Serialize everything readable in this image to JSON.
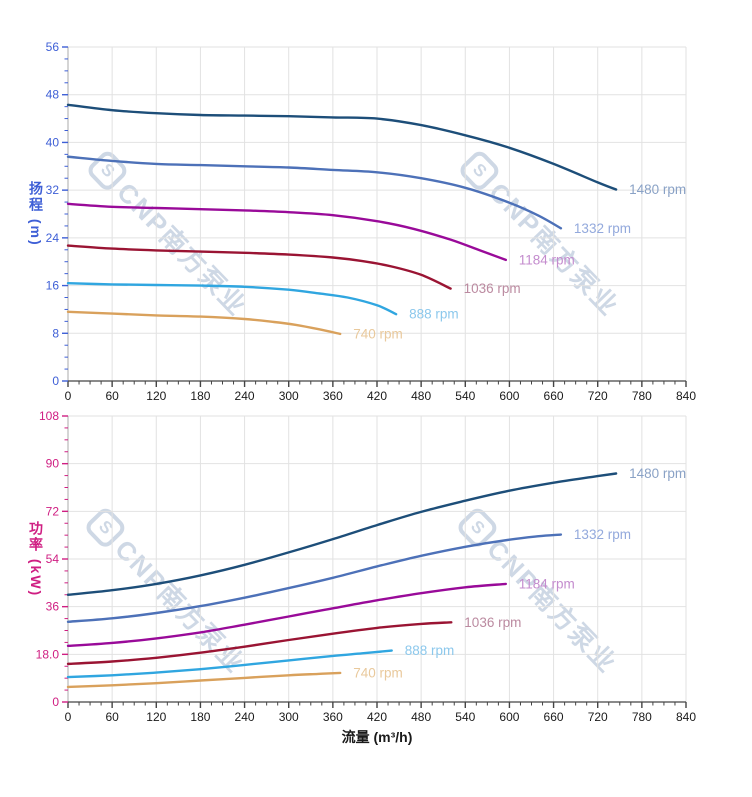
{
  "page": {
    "background": "#ffffff"
  },
  "watermark": {
    "logo": "S",
    "text": "CNP南方泵业",
    "color": "#c3cfdf"
  },
  "chart_data": [
    {
      "type": "line",
      "title": "",
      "xlabel": "",
      "ylabel": "扬程 (m)",
      "xlim": [
        0,
        840
      ],
      "ylim": [
        0,
        56
      ],
      "grid": true,
      "axis_color": "#3e5fd6",
      "x_axis_color": "#333333",
      "x_tick_labels": [
        "0",
        "60",
        "120",
        "180",
        "240",
        "300",
        "360",
        "420",
        "480",
        "540",
        "600",
        "660",
        "720",
        "780",
        "840"
      ],
      "y_tick_labels": [
        "0",
        "8",
        "16",
        "24",
        "32",
        "40",
        "48",
        "56"
      ],
      "x_minor_step": 15,
      "y_minor_step": 2,
      "legend_position": "curve-end-labels",
      "series": [
        {
          "name": "1480 rpm",
          "color": "#1d4e79",
          "label_color": "#8aa2c6",
          "points": [
            [
              0,
              46.3
            ],
            [
              60,
              45.4
            ],
            [
              120,
              44.9
            ],
            [
              180,
              44.6
            ],
            [
              240,
              44.5
            ],
            [
              300,
              44.4
            ],
            [
              360,
              44.2
            ],
            [
              420,
              44.0
            ],
            [
              480,
              42.9
            ],
            [
              540,
              41.2
            ],
            [
              600,
              39.1
            ],
            [
              660,
              36.4
            ],
            [
              720,
              33.3
            ],
            [
              745,
              32.1
            ]
          ]
        },
        {
          "name": "1332 rpm",
          "color": "#4d71b8",
          "label_color": "#93a9dc",
          "points": [
            [
              0,
              37.6
            ],
            [
              60,
              36.9
            ],
            [
              120,
              36.4
            ],
            [
              180,
              36.2
            ],
            [
              240,
              36.0
            ],
            [
              300,
              35.8
            ],
            [
              360,
              35.4
            ],
            [
              420,
              35.0
            ],
            [
              480,
              34.0
            ],
            [
              540,
              32.4
            ],
            [
              600,
              29.9
            ],
            [
              640,
              27.7
            ],
            [
              670,
              25.6
            ]
          ]
        },
        {
          "name": "1184 rpm",
          "color": "#990a99",
          "label_color": "#c48cce",
          "points": [
            [
              0,
              29.7
            ],
            [
              60,
              29.2
            ],
            [
              120,
              29.0
            ],
            [
              180,
              28.8
            ],
            [
              240,
              28.6
            ],
            [
              300,
              28.3
            ],
            [
              360,
              27.8
            ],
            [
              420,
              26.8
            ],
            [
              470,
              25.5
            ],
            [
              520,
              23.7
            ],
            [
              560,
              21.9
            ],
            [
              595,
              20.3
            ]
          ]
        },
        {
          "name": "1036 rpm",
          "color": "#9a1433",
          "label_color": "#bb8aa0",
          "points": [
            [
              0,
              22.7
            ],
            [
              60,
              22.2
            ],
            [
              120,
              21.9
            ],
            [
              180,
              21.7
            ],
            [
              240,
              21.5
            ],
            [
              300,
              21.2
            ],
            [
              360,
              20.7
            ],
            [
              400,
              20.1
            ],
            [
              440,
              19.2
            ],
            [
              480,
              17.8
            ],
            [
              520,
              15.5
            ]
          ]
        },
        {
          "name": "888 rpm",
          "color": "#30a6e0",
          "label_color": "#8cc8ec",
          "points": [
            [
              0,
              16.4
            ],
            [
              60,
              16.2
            ],
            [
              120,
              16.1
            ],
            [
              180,
              16.0
            ],
            [
              240,
              15.8
            ],
            [
              300,
              15.3
            ],
            [
              340,
              14.7
            ],
            [
              380,
              14.0
            ],
            [
              420,
              12.7
            ],
            [
              446,
              11.2
            ]
          ]
        },
        {
          "name": "740 rpm",
          "color": "#d9a15c",
          "label_color": "#e9c99c",
          "points": [
            [
              0,
              11.6
            ],
            [
              60,
              11.3
            ],
            [
              120,
              11.0
            ],
            [
              180,
              10.8
            ],
            [
              240,
              10.4
            ],
            [
              280,
              9.9
            ],
            [
              310,
              9.4
            ],
            [
              340,
              8.7
            ],
            [
              370,
              7.9
            ]
          ]
        }
      ]
    },
    {
      "type": "line",
      "title": "",
      "xlabel": "流量 (m³/h)",
      "ylabel": "功率 (kW)",
      "xlim": [
        0,
        840
      ],
      "ylim": [
        0,
        108
      ],
      "grid": true,
      "axis_color": "#cf1e82",
      "x_axis_color": "#333333",
      "x_tick_labels": [
        "0",
        "60",
        "120",
        "180",
        "240",
        "300",
        "360",
        "420",
        "480",
        "540",
        "600",
        "660",
        "720",
        "780",
        "840"
      ],
      "y_tick_labels": [
        "0",
        "18.0",
        "36",
        "54",
        "72",
        "90",
        "108"
      ],
      "x_minor_step": 15,
      "y_minor_step": 4.5,
      "legend_position": "curve-end-labels",
      "series": [
        {
          "name": "1480 rpm",
          "color": "#1d4e79",
          "label_color": "#8aa2c6",
          "points": [
            [
              0,
              40.5
            ],
            [
              60,
              42.2
            ],
            [
              120,
              44.6
            ],
            [
              180,
              47.8
            ],
            [
              240,
              51.8
            ],
            [
              300,
              56.5
            ],
            [
              360,
              61.5
            ],
            [
              420,
              66.8
            ],
            [
              480,
              71.8
            ],
            [
              540,
              76.0
            ],
            [
              600,
              79.8
            ],
            [
              660,
              82.8
            ],
            [
              720,
              85.3
            ],
            [
              745,
              86.3
            ]
          ]
        },
        {
          "name": "1332 rpm",
          "color": "#4d71b8",
          "label_color": "#93a9dc",
          "points": [
            [
              0,
              30.3
            ],
            [
              60,
              31.6
            ],
            [
              120,
              33.6
            ],
            [
              180,
              36.2
            ],
            [
              240,
              39.4
            ],
            [
              300,
              43.0
            ],
            [
              360,
              46.9
            ],
            [
              420,
              51.2
            ],
            [
              480,
              55.2
            ],
            [
              540,
              58.6
            ],
            [
              600,
              61.3
            ],
            [
              640,
              62.6
            ],
            [
              670,
              63.2
            ]
          ]
        },
        {
          "name": "1184 rpm",
          "color": "#990a99",
          "label_color": "#c48cce",
          "points": [
            [
              0,
              21.2
            ],
            [
              60,
              22.3
            ],
            [
              120,
              24.0
            ],
            [
              180,
              26.3
            ],
            [
              240,
              29.2
            ],
            [
              300,
              32.3
            ],
            [
              360,
              35.4
            ],
            [
              420,
              38.4
            ],
            [
              480,
              41.1
            ],
            [
              540,
              43.3
            ],
            [
              595,
              44.6
            ]
          ]
        },
        {
          "name": "1036 rpm",
          "color": "#9a1433",
          "label_color": "#bb8aa0",
          "points": [
            [
              0,
              14.4
            ],
            [
              60,
              15.3
            ],
            [
              120,
              16.7
            ],
            [
              180,
              18.6
            ],
            [
              240,
              20.9
            ],
            [
              300,
              23.4
            ],
            [
              360,
              25.8
            ],
            [
              420,
              28.0
            ],
            [
              480,
              29.5
            ],
            [
              521,
              30.1
            ]
          ]
        },
        {
          "name": "888 rpm",
          "color": "#30a6e0",
          "label_color": "#8cc8ec",
          "points": [
            [
              0,
              9.4
            ],
            [
              60,
              10.1
            ],
            [
              120,
              11.1
            ],
            [
              180,
              12.4
            ],
            [
              240,
              14.0
            ],
            [
              300,
              15.7
            ],
            [
              360,
              17.4
            ],
            [
              400,
              18.4
            ],
            [
              440,
              19.4
            ]
          ]
        },
        {
          "name": "740 rpm",
          "color": "#d9a15c",
          "label_color": "#e9c99c",
          "points": [
            [
              0,
              5.7
            ],
            [
              60,
              6.3
            ],
            [
              120,
              7.1
            ],
            [
              180,
              8.1
            ],
            [
              240,
              9.1
            ],
            [
              300,
              10.1
            ],
            [
              340,
              10.6
            ],
            [
              370,
              11.0
            ]
          ]
        }
      ]
    }
  ]
}
